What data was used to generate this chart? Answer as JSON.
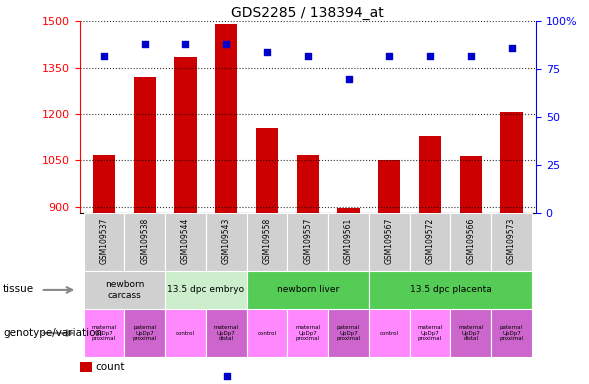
{
  "title": "GDS2285 / 138394_at",
  "samples": [
    "GSM109537",
    "GSM109538",
    "GSM109544",
    "GSM109543",
    "GSM109558",
    "GSM109557",
    "GSM109561",
    "GSM109567",
    "GSM109572",
    "GSM109566",
    "GSM109573"
  ],
  "counts": [
    1068,
    1320,
    1385,
    1490,
    1155,
    1068,
    895,
    1052,
    1130,
    1065,
    1205
  ],
  "percentiles": [
    82,
    88,
    88,
    88,
    84,
    82,
    70,
    82,
    82,
    82,
    86
  ],
  "ylim_left": [
    880,
    1500
  ],
  "ylim_right": [
    0,
    100
  ],
  "yticks_left": [
    900,
    1050,
    1200,
    1350,
    1500
  ],
  "yticks_right": [
    0,
    25,
    50,
    75,
    100
  ],
  "bar_color": "#cc0000",
  "dot_color": "#0000cc",
  "tissue_groups": [
    {
      "label": "newborn\ncarcass",
      "start": 0,
      "end": 2,
      "color": "#d0d0d0"
    },
    {
      "label": "13.5 dpc embryo",
      "start": 2,
      "end": 4,
      "color": "#cceecc"
    },
    {
      "label": "newborn liver",
      "start": 4,
      "end": 7,
      "color": "#55cc55"
    },
    {
      "label": "13.5 dpc placenta",
      "start": 7,
      "end": 11,
      "color": "#55cc55"
    }
  ],
  "genotype_groups": [
    {
      "label": "maternal\nUpDp7\nproximal",
      "start": 0,
      "end": 1,
      "color": "#ff88ff"
    },
    {
      "label": "paternal\nUpDp7\nproximal",
      "start": 1,
      "end": 2,
      "color": "#cc66cc"
    },
    {
      "label": "control",
      "start": 2,
      "end": 3,
      "color": "#ff88ff"
    },
    {
      "label": "maternal\nUpDp7\ndistal",
      "start": 3,
      "end": 4,
      "color": "#cc66cc"
    },
    {
      "label": "control",
      "start": 4,
      "end": 5,
      "color": "#ff88ff"
    },
    {
      "label": "maternal\nUpDp7\nproximal",
      "start": 5,
      "end": 6,
      "color": "#ff88ff"
    },
    {
      "label": "paternal\nUpDp7\nproximal",
      "start": 6,
      "end": 7,
      "color": "#cc66cc"
    },
    {
      "label": "control",
      "start": 7,
      "end": 8,
      "color": "#ff88ff"
    },
    {
      "label": "maternal\nUpDp7\nproximal",
      "start": 8,
      "end": 9,
      "color": "#ff88ff"
    },
    {
      "label": "maternal\nUpDp7\ndistal",
      "start": 9,
      "end": 10,
      "color": "#cc66cc"
    },
    {
      "label": "paternal\nUpDp7\nproximal",
      "start": 10,
      "end": 11,
      "color": "#cc66cc"
    }
  ],
  "legend_count_color": "#cc0000",
  "legend_dot_color": "#0000cc",
  "sample_bg_color": "#d0d0d0",
  "fig_width": 5.89,
  "fig_height": 3.84,
  "dpi": 100
}
